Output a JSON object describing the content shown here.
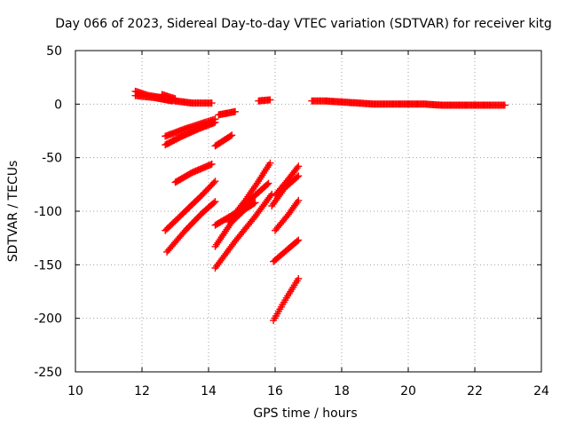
{
  "chart_data": {
    "type": "scatter",
    "title": "Day 066 of 2023, Sidereal Day-to-day VTEC variation (SDTVAR) for receiver kitg",
    "xlabel": "GPS time / hours",
    "ylabel": "SDTVAR / TECUs",
    "xlim": [
      10,
      24
    ],
    "ylim": [
      -250,
      50
    ],
    "xticks": [
      "10",
      "12",
      "14",
      "16",
      "18",
      "20",
      "22",
      "24"
    ],
    "yticks": [
      "50",
      "0",
      "-50",
      "-100",
      "-150",
      "-200",
      "-250"
    ],
    "grid": true,
    "marker": "plus",
    "color": "#ff0000",
    "tracks": [
      {
        "x": [
          11.8,
          12.2,
          12.6,
          13.0,
          13.5,
          14.1
        ],
        "y": [
          12,
          8,
          6,
          3,
          1,
          1
        ]
      },
      {
        "x": [
          11.8,
          12.4,
          12.9
        ],
        "y": [
          8,
          6,
          3
        ]
      },
      {
        "x": [
          12.6,
          13.0
        ],
        "y": [
          9,
          5
        ]
      },
      {
        "x": [
          12.7,
          13.3,
          13.9,
          14.2
        ],
        "y": [
          -30,
          -23,
          -17,
          -14
        ]
      },
      {
        "x": [
          12.7,
          13.2,
          13.7,
          14.2
        ],
        "y": [
          -38,
          -30,
          -23,
          -17
        ]
      },
      {
        "x": [
          14.3,
          14.8
        ],
        "y": [
          -10,
          -7
        ]
      },
      {
        "x": [
          14.2,
          14.7
        ],
        "y": [
          -39,
          -29
        ]
      },
      {
        "x": [
          13.0,
          13.5,
          14.1
        ],
        "y": [
          -73,
          -64,
          -56
        ]
      },
      {
        "x": [
          12.7,
          13.3,
          13.8,
          14.2
        ],
        "y": [
          -118,
          -100,
          -85,
          -72
        ]
      },
      {
        "x": [
          12.75,
          13.3,
          13.8,
          14.2
        ],
        "y": [
          -138,
          -118,
          -102,
          -91
        ]
      },
      {
        "x": [
          14.2,
          14.7,
          15.1,
          15.4
        ],
        "y": [
          -133,
          -110,
          -98,
          -92
        ]
      },
      {
        "x": [
          14.2,
          14.8,
          15.3,
          15.8
        ],
        "y": [
          -113,
          -102,
          -88,
          -74
        ]
      },
      {
        "x": [
          14.6,
          15.1,
          15.5,
          15.85
        ],
        "y": [
          -110,
          -90,
          -72,
          -55
        ]
      },
      {
        "x": [
          14.2,
          14.8,
          15.4,
          15.9
        ],
        "y": [
          -153,
          -128,
          -105,
          -84
        ]
      },
      {
        "x": [
          15.5,
          15.85
        ],
        "y": [
          3,
          4
        ]
      },
      {
        "x": [
          16.0,
          16.4,
          16.7
        ],
        "y": [
          -85,
          -70,
          -58
        ]
      },
      {
        "x": [
          15.9,
          16.3,
          16.7
        ],
        "y": [
          -95,
          -78,
          -67
        ]
      },
      {
        "x": [
          16.0,
          16.4,
          16.7
        ],
        "y": [
          -118,
          -103,
          -90
        ]
      },
      {
        "x": [
          15.95,
          16.4,
          16.7
        ],
        "y": [
          -147,
          -135,
          -127
        ]
      },
      {
        "x": [
          15.95,
          16.3,
          16.7
        ],
        "y": [
          -202,
          -183,
          -163
        ]
      },
      {
        "x": [
          17.1,
          17.5,
          18.0,
          18.5,
          19.0,
          19.5,
          20.0,
          20.5,
          21.0,
          21.5,
          22.0,
          22.5,
          22.9
        ],
        "y": [
          3,
          3,
          2,
          1,
          0,
          0,
          0,
          0,
          -1,
          -1,
          -1,
          -1,
          -1
        ]
      }
    ]
  }
}
